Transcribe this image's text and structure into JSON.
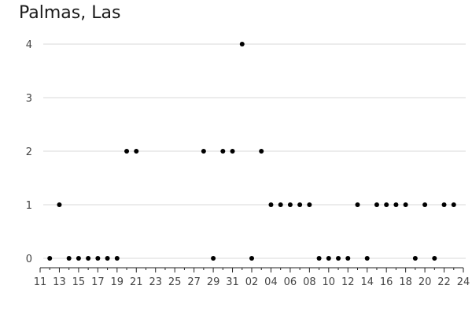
{
  "chart_data": {
    "type": "scatter",
    "title": "Palmas, Las",
    "xlabel": "",
    "ylabel": "",
    "ylim": [
      0,
      4
    ],
    "y_ticks": [
      "0",
      "1",
      "2",
      "3",
      "4"
    ],
    "x_ticks": [
      "11",
      "13",
      "15",
      "17",
      "19",
      "21",
      "23",
      "25",
      "27",
      "29",
      "31",
      "02",
      "04",
      "06",
      "08",
      "10",
      "12",
      "14",
      "16",
      "18",
      "20",
      "22",
      "24"
    ],
    "grid": "horizontal",
    "point_color": "#000000",
    "points": [
      {
        "x": "2023-03-12",
        "y": 0
      },
      {
        "x": "2023-03-13",
        "y": 1
      },
      {
        "x": "2023-03-14",
        "y": 0
      },
      {
        "x": "2023-03-15",
        "y": 0
      },
      {
        "x": "2023-03-16",
        "y": 0
      },
      {
        "x": "2023-03-17",
        "y": 0
      },
      {
        "x": "2023-03-18",
        "y": 0
      },
      {
        "x": "2023-03-19",
        "y": 0
      },
      {
        "x": "2023-03-20",
        "y": 2
      },
      {
        "x": "2023-03-21",
        "y": 2
      },
      {
        "x": "2023-03-28",
        "y": 2
      },
      {
        "x": "2023-03-29",
        "y": 0
      },
      {
        "x": "2023-03-30",
        "y": 2
      },
      {
        "x": "2023-03-31",
        "y": 2
      },
      {
        "x": "2023-04-01",
        "y": 4
      },
      {
        "x": "2023-04-02",
        "y": 0
      },
      {
        "x": "2023-04-03",
        "y": 2
      },
      {
        "x": "2023-04-04",
        "y": 1
      },
      {
        "x": "2023-04-05",
        "y": 1
      },
      {
        "x": "2023-04-06",
        "y": 1
      },
      {
        "x": "2023-04-07",
        "y": 1
      },
      {
        "x": "2023-04-08",
        "y": 1
      },
      {
        "x": "2023-04-09",
        "y": 0
      },
      {
        "x": "2023-04-10",
        "y": 0
      },
      {
        "x": "2023-04-11",
        "y": 0
      },
      {
        "x": "2023-04-12",
        "y": 0
      },
      {
        "x": "2023-04-13",
        "y": 1
      },
      {
        "x": "2023-04-14",
        "y": 0
      },
      {
        "x": "2023-04-15",
        "y": 1
      },
      {
        "x": "2023-04-16",
        "y": 1
      },
      {
        "x": "2023-04-17",
        "y": 1
      },
      {
        "x": "2023-04-18",
        "y": 1
      },
      {
        "x": "2023-04-19",
        "y": 0
      },
      {
        "x": "2023-04-20",
        "y": 1
      },
      {
        "x": "2023-04-21",
        "y": 0
      },
      {
        "x": "2023-04-22",
        "y": 1
      },
      {
        "x": "2023-04-23",
        "y": 1
      }
    ]
  }
}
